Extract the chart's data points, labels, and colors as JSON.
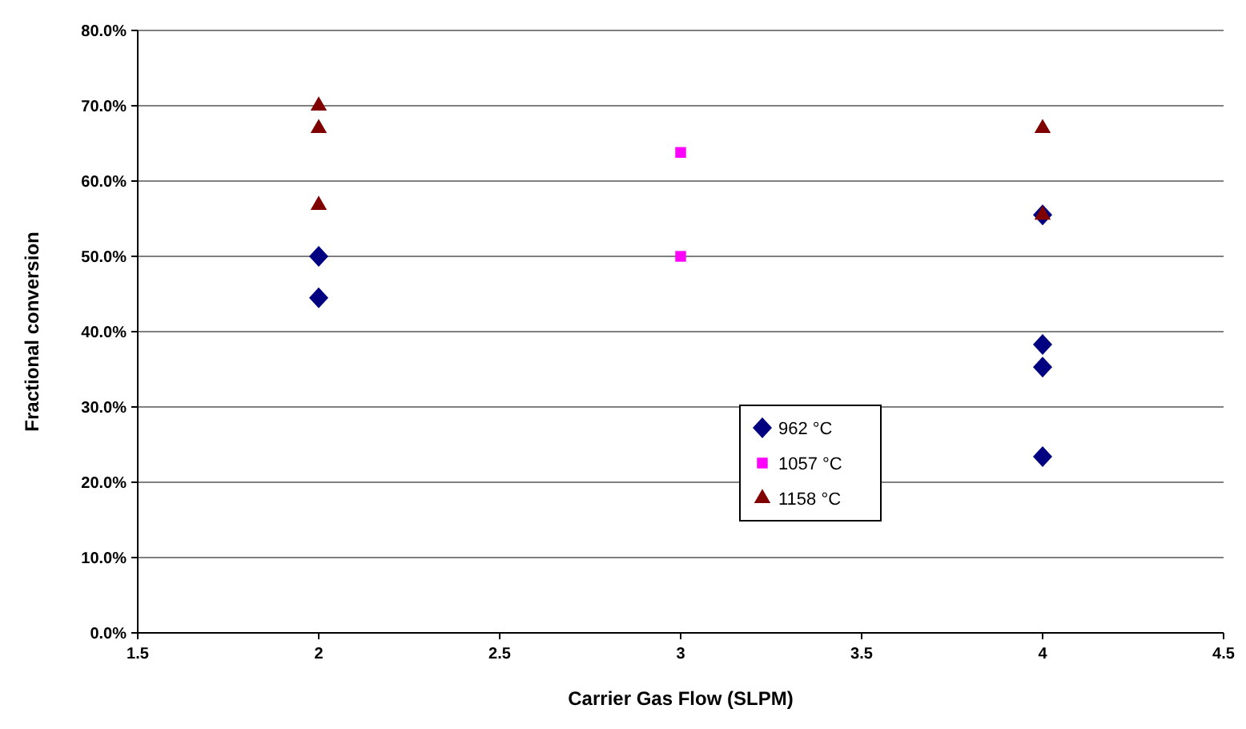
{
  "chart_data": {
    "type": "scatter",
    "xlabel": "Carrier Gas Flow (SLPM)",
    "ylabel": "Fractional conversion",
    "xlim": [
      1.5,
      4.5
    ],
    "xticks": [
      1.5,
      {
        "value": 2,
        "label": "2"
      },
      2.5,
      {
        "value": 3,
        "label": "3"
      },
      3.5,
      {
        "value": 4,
        "label": "4"
      },
      4.5
    ],
    "ylim": [
      0,
      80
    ],
    "yticks": [
      {
        "value": 0,
        "label": "0.0%"
      },
      {
        "value": 10,
        "label": "10.0%"
      },
      {
        "value": 20,
        "label": "20.0%"
      },
      {
        "value": 30,
        "label": "30.0%"
      },
      {
        "value": 40,
        "label": "40.0%"
      },
      {
        "value": 50,
        "label": "50.0%"
      },
      {
        "value": 60,
        "label": "60.0%"
      },
      {
        "value": 70,
        "label": "70.0%"
      },
      {
        "value": 80,
        "label": "80.0%"
      }
    ],
    "grid": "y",
    "legend": "right",
    "series": [
      {
        "name": "962 °C",
        "color": "#000080",
        "marker": "diamond",
        "x": [
          2,
          2,
          4,
          4,
          4,
          4
        ],
        "values": [
          50.0,
          44.5,
          55.5,
          38.3,
          35.3,
          23.4
        ]
      },
      {
        "name": "1057 °C",
        "color": "#ff00ff",
        "marker": "square",
        "x": [
          3,
          3
        ],
        "values": [
          63.8,
          50.0
        ]
      },
      {
        "name": "1158 °C",
        "color": "#800000",
        "marker": "triangle",
        "x": [
          2,
          2,
          2,
          4,
          4
        ],
        "values": [
          70.0,
          67.0,
          56.8,
          67.0,
          55.5
        ]
      }
    ]
  }
}
